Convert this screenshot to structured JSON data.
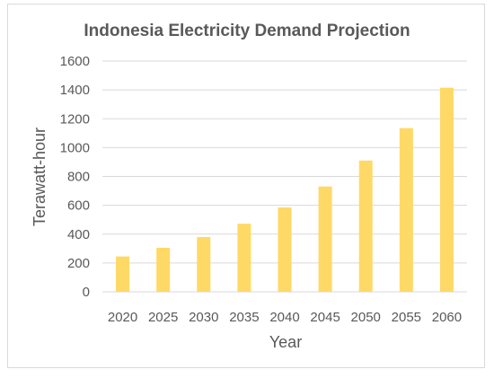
{
  "chart_data": {
    "type": "bar",
    "title": "Indonesia Electricity Demand Projection",
    "xlabel": "Year",
    "ylabel": "Terawatt-hour",
    "categories": [
      "2020",
      "2025",
      "2030",
      "2035",
      "2040",
      "2045",
      "2050",
      "2055",
      "2060"
    ],
    "values": [
      245,
      305,
      380,
      472,
      585,
      730,
      910,
      1135,
      1415
    ],
    "ylim": [
      0,
      1600
    ],
    "yticks": [
      0,
      200,
      400,
      600,
      800,
      1000,
      1200,
      1400,
      1600
    ],
    "grid": true,
    "legend": "none",
    "bar_color": "#ffd966",
    "grid_color": "#d9d9d9"
  }
}
